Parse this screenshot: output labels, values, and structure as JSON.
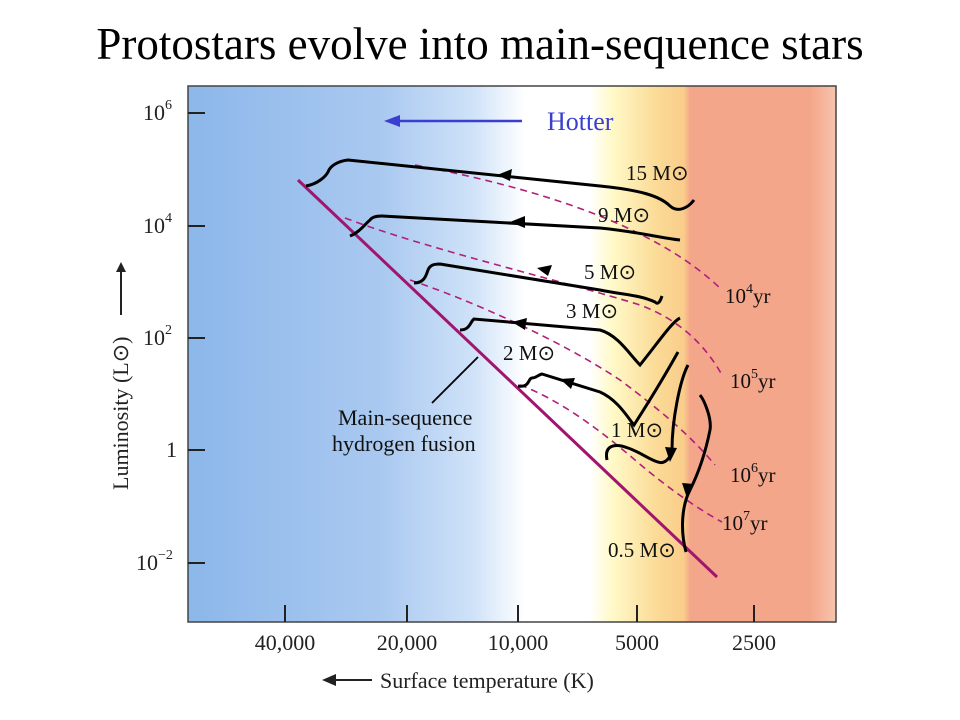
{
  "title": "Protostars evolve into main-sequence stars",
  "y_axis": {
    "label": "Luminosity (L",
    "ticks": [
      {
        "base": "10",
        "exp": "6"
      },
      {
        "base": "10",
        "exp": "4"
      },
      {
        "base": "10",
        "exp": "2"
      },
      {
        "base": "1",
        "exp": ""
      },
      {
        "base": "10",
        "exp": "−2"
      }
    ]
  },
  "x_axis": {
    "label": "Surface temperature (K)",
    "ticks": [
      "40,000",
      "20,000",
      "10,000",
      "5000",
      "2500"
    ]
  },
  "hotter_label": "Hotter",
  "main_sequence_label": {
    "line1": "Main-sequence",
    "line2": "hydrogen fusion"
  },
  "tracks": [
    {
      "mass": "15 M"
    },
    {
      "mass": "9 M"
    },
    {
      "mass": "5 M"
    },
    {
      "mass": "3 M"
    },
    {
      "mass": "2 M"
    },
    {
      "mass": "1 M"
    },
    {
      "mass": "0.5 M"
    }
  ],
  "isochrones": [
    {
      "base": "10",
      "exp": "4",
      "unit": "yr"
    },
    {
      "base": "10",
      "exp": "5",
      "unit": "yr"
    },
    {
      "base": "10",
      "exp": "6",
      "unit": "yr"
    },
    {
      "base": "10",
      "exp": "7",
      "unit": "yr"
    }
  ],
  "colors": {
    "main_sequence": "#a0166e",
    "isochrone": "#b0207a",
    "track": "#000000",
    "hotter": "#3a3fd0"
  }
}
